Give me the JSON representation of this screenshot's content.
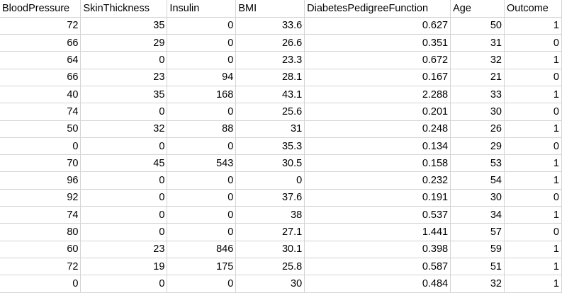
{
  "table": {
    "columns": [
      "BloodPressure",
      "SkinThickness",
      "Insulin",
      "BMI",
      "DiabetesPedigreeFunction",
      "Age",
      "Outcome"
    ],
    "rows": [
      [
        "72",
        "35",
        "0",
        "33.6",
        "0.627",
        "50",
        "1"
      ],
      [
        "66",
        "29",
        "0",
        "26.6",
        "0.351",
        "31",
        "0"
      ],
      [
        "64",
        "0",
        "0",
        "23.3",
        "0.672",
        "32",
        "1"
      ],
      [
        "66",
        "23",
        "94",
        "28.1",
        "0.167",
        "21",
        "0"
      ],
      [
        "40",
        "35",
        "168",
        "43.1",
        "2.288",
        "33",
        "1"
      ],
      [
        "74",
        "0",
        "0",
        "25.6",
        "0.201",
        "30",
        "0"
      ],
      [
        "50",
        "32",
        "88",
        "31",
        "0.248",
        "26",
        "1"
      ],
      [
        "0",
        "0",
        "0",
        "35.3",
        "0.134",
        "29",
        "0"
      ],
      [
        "70",
        "45",
        "543",
        "30.5",
        "0.158",
        "53",
        "1"
      ],
      [
        "96",
        "0",
        "0",
        "0",
        "0.232",
        "54",
        "1"
      ],
      [
        "92",
        "0",
        "0",
        "37.6",
        "0.191",
        "30",
        "0"
      ],
      [
        "74",
        "0",
        "0",
        "38",
        "0.537",
        "34",
        "1"
      ],
      [
        "80",
        "0",
        "0",
        "27.1",
        "1.441",
        "57",
        "0"
      ],
      [
        "60",
        "23",
        "846",
        "30.1",
        "0.398",
        "59",
        "1"
      ],
      [
        "72",
        "19",
        "175",
        "25.8",
        "0.587",
        "51",
        "1"
      ],
      [
        "0",
        "0",
        "0",
        "30",
        "0.484",
        "32",
        "1"
      ]
    ]
  }
}
